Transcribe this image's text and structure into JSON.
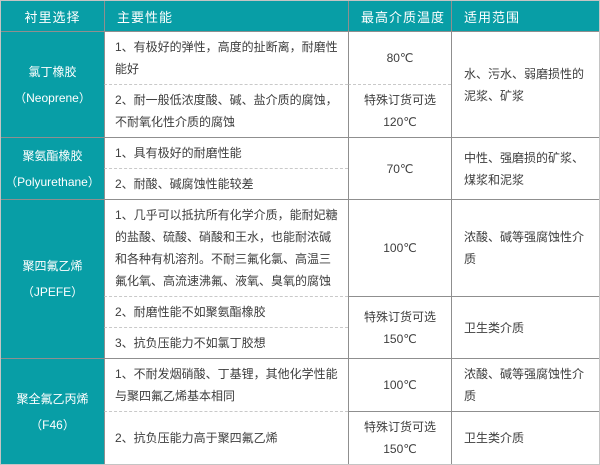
{
  "table": {
    "colors": {
      "teal": "#089ea6",
      "line": "#8f8f8f",
      "dash": "#c9c9c9",
      "text": "#3d3d3d"
    },
    "headers": [
      "衬里选择",
      "主要性能",
      "最高介质温度",
      "适用范围"
    ],
    "rows": [
      {
        "material": {
          "name": "氯丁橡胶",
          "sub": "（Neoprene）"
        },
        "performance": [
          "1、有极好的弹性，高度的扯断离，耐磨性能好",
          "2、耐一般低浓度酸、碱、盐介质的腐蚀，不耐氧化性介质的腐蚀"
        ],
        "temperature": [
          {
            "lines": [
              "80℃"
            ],
            "row": 1,
            "span": 1,
            "divider": "none"
          },
          {
            "lines": [
              "特殊订货可选",
              "120℃"
            ],
            "row": 2,
            "span": 1,
            "divider": "dashed"
          }
        ],
        "range": [
          {
            "lines": [
              "水、污水、弱磨损性的泥浆、矿浆"
            ],
            "row": 1,
            "span": 2,
            "divider": "none"
          }
        ]
      },
      {
        "material": {
          "name": "聚氨酯橡胶",
          "sub": "（Polyurethane）"
        },
        "performance": [
          "1、具有极好的耐磨性能",
          "2、耐酸、碱腐蚀性能较差"
        ],
        "temperature": [
          {
            "lines": [
              "70℃"
            ],
            "row": 1,
            "span": 2,
            "divider": "none"
          }
        ],
        "range": [
          {
            "lines": [
              "中性、强磨损的矿浆、煤浆和泥浆"
            ],
            "row": 1,
            "span": 2,
            "divider": "none"
          }
        ]
      },
      {
        "material": {
          "name": "聚四氟乙烯",
          "sub": "（JPEFE）"
        },
        "performance": [
          "1、几乎可以抵抗所有化学介质，能耐妃糖的盐酸、硫酸、硝酸和王水，也能耐浓碱和各种有机溶剂。不耐三氟化氯、高温三氟化氧、高流速沸氟、液氧、臭氧的腐蚀",
          "2、耐磨性能不如聚氨酯橡胶",
          "3、抗负压能力不如氯丁胶想"
        ],
        "temperature": [
          {
            "lines": [
              "100℃"
            ],
            "row": 1,
            "span": 1,
            "divider": "none"
          },
          {
            "lines": [
              "特殊订货可选",
              "150℃"
            ],
            "row": 2,
            "span": 2,
            "divider": "solid"
          }
        ],
        "range": [
          {
            "lines": [
              "浓酸、碱等强腐蚀性介质"
            ],
            "row": 1,
            "span": 1,
            "divider": "none"
          },
          {
            "lines": [
              "卫生类介质"
            ],
            "row": 2,
            "span": 2,
            "divider": "solid"
          }
        ]
      },
      {
        "material": {
          "name": "聚全氟乙丙烯",
          "sub": "（F46）"
        },
        "performance": [
          "1、不耐发烟硝酸、丁基锂，其他化学性能与聚四氟乙烯基本相同",
          "2、抗负压能力高于聚四氟乙烯"
        ],
        "temperature": [
          {
            "lines": [
              "100℃"
            ],
            "row": 1,
            "span": 1,
            "divider": "none"
          },
          {
            "lines": [
              "特殊订货可选",
              "150℃"
            ],
            "row": 2,
            "span": 1,
            "divider": "solid"
          }
        ],
        "range": [
          {
            "lines": [
              "浓酸、碱等强腐蚀性介质"
            ],
            "row": 1,
            "span": 1,
            "divider": "none"
          },
          {
            "lines": [
              "卫生类介质"
            ],
            "row": 2,
            "span": 1,
            "divider": "solid"
          }
        ]
      }
    ]
  }
}
